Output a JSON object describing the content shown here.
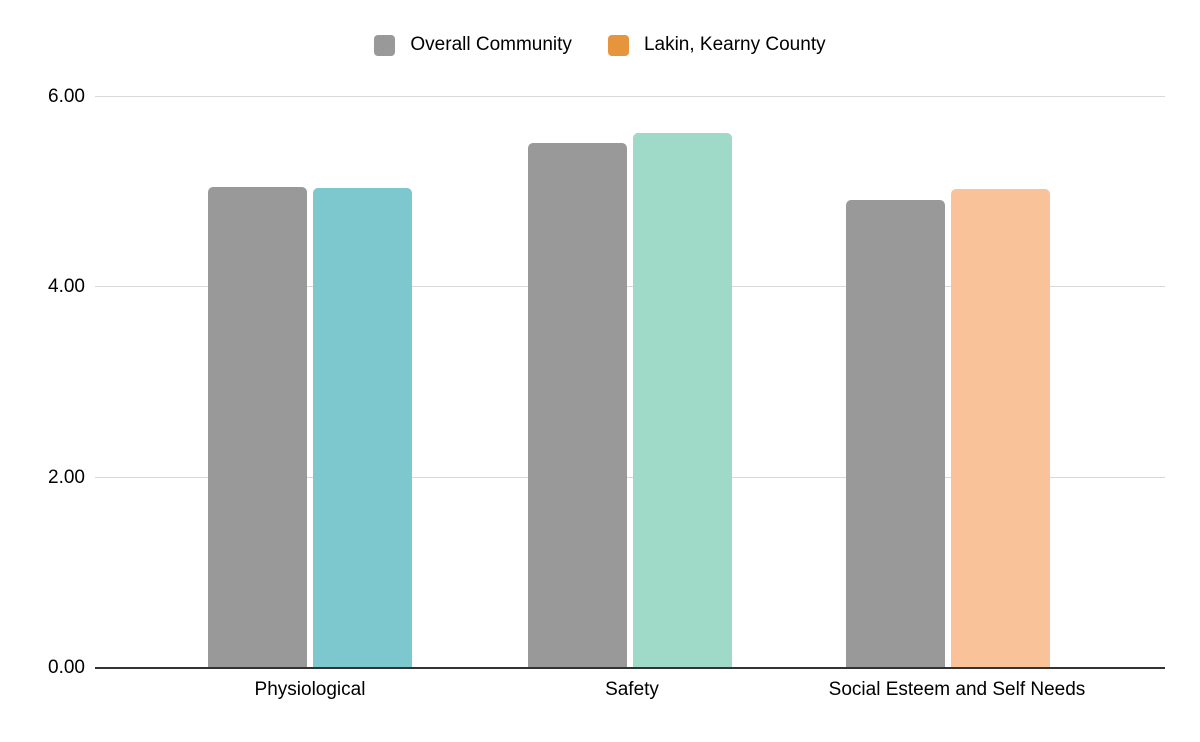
{
  "chart_data": {
    "type": "bar",
    "title": "",
    "categories": [
      "Physiological",
      "Safety",
      "Social Esteem and Self Needs"
    ],
    "series": [
      {
        "name": "Overall Community",
        "legend_color": "#999999",
        "values": [
          5.04,
          5.51,
          4.91
        ],
        "bar_colors": [
          "#999999",
          "#999999",
          "#999999"
        ]
      },
      {
        "name": "Lakin, Kearny County",
        "legend_color": "#e6953c",
        "values": [
          5.03,
          5.61,
          5.02
        ],
        "bar_colors": [
          "#7cc8ce",
          "#9edac7",
          "#f9c298"
        ]
      }
    ],
    "ylim": [
      0,
      6
    ],
    "yticks": [
      {
        "value": 0,
        "label": "0.00"
      },
      {
        "value": 2,
        "label": "2.00"
      },
      {
        "value": 4,
        "label": "4.00"
      },
      {
        "value": 6,
        "label": "6.00"
      }
    ],
    "grid": true,
    "legend_position": "top",
    "colors": {
      "gridline": "#d9d9d9",
      "axis_baseline": "#333333",
      "text": "#000000",
      "background": "#ffffff"
    }
  }
}
